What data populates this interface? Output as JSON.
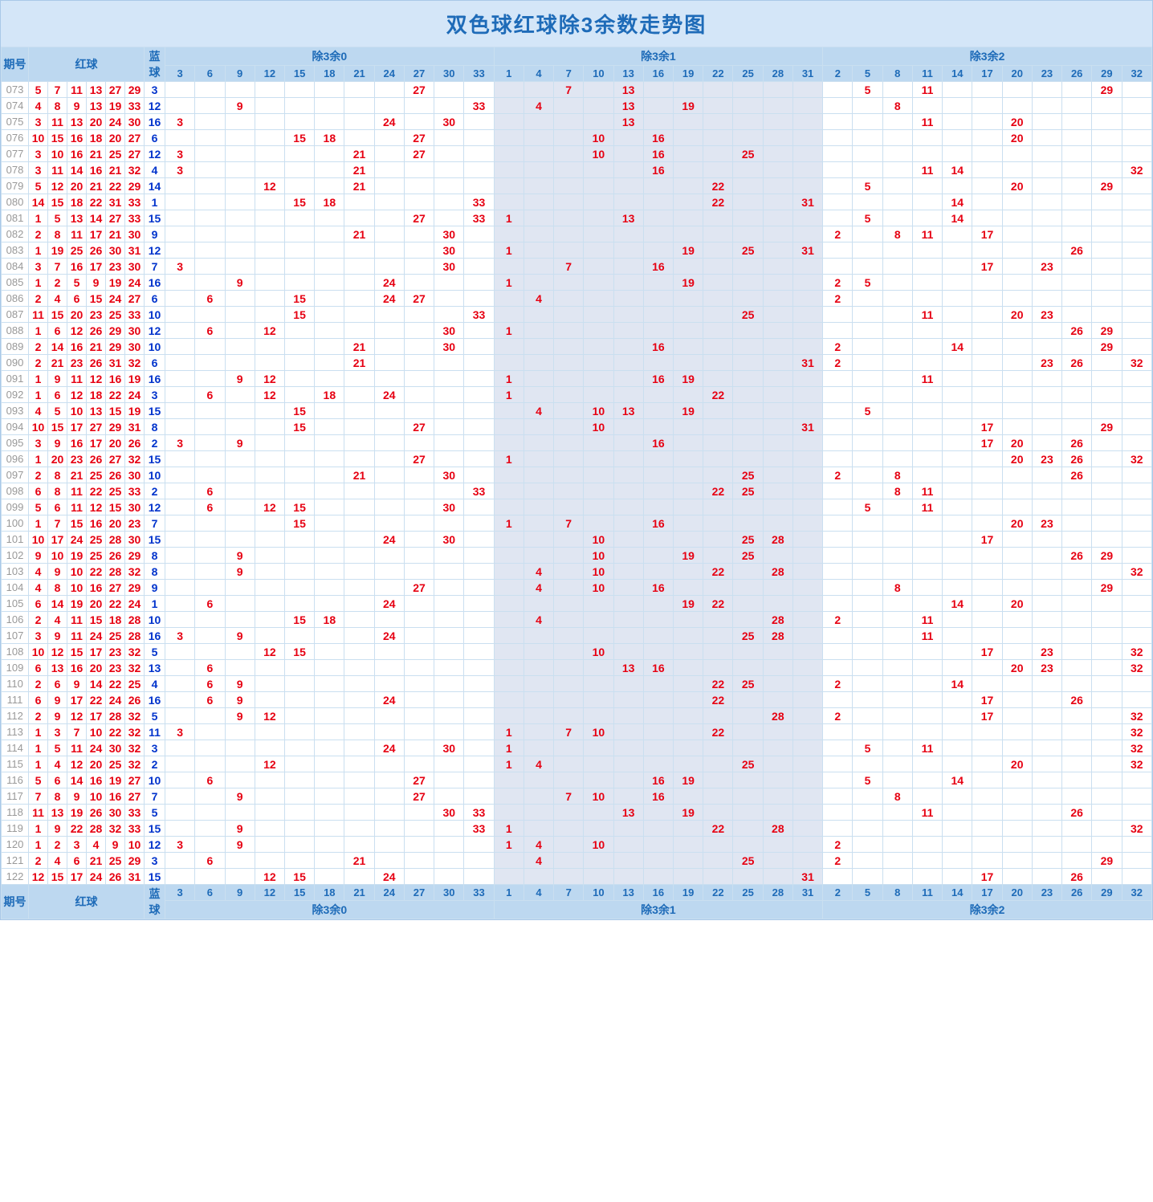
{
  "title": "双色球红球除3余数走势图",
  "headers": {
    "period": "期号",
    "redballs": "红球",
    "blueball": "蓝球",
    "groups": [
      "除3余0",
      "除3余1",
      "除3余2"
    ],
    "group_cols": [
      [
        "3",
        "6",
        "9",
        "12",
        "15",
        "18",
        "21",
        "24",
        "27",
        "30",
        "33"
      ],
      [
        "1",
        "4",
        "7",
        "10",
        "13",
        "16",
        "19",
        "22",
        "25",
        "28",
        "31"
      ],
      [
        "2",
        "5",
        "8",
        "11",
        "14",
        "17",
        "20",
        "23",
        "26",
        "29",
        "32"
      ]
    ]
  },
  "style": {
    "title_bg": "#d4e6f8",
    "title_color": "#1e6bb8",
    "title_fontsize": 26,
    "header_bg": "#bdd8f0",
    "header_color": "#1e6bb8",
    "border": "#cadff0",
    "g1_bg": "#e0e6f2",
    "red": "#e60012",
    "blue": "#0033cc",
    "period_color": "#999999",
    "cell_fontsize": 14
  },
  "rows": [
    {
      "p": "073",
      "red": [
        5,
        7,
        11,
        13,
        27,
        29
      ],
      "blue": 3,
      "r0": {
        "27": "27"
      },
      "r1": {
        "7": "7",
        "13": "13"
      },
      "r2": {
        "5": "5",
        "11": "11",
        "29": "29"
      }
    },
    {
      "p": "074",
      "red": [
        4,
        8,
        9,
        13,
        19,
        33
      ],
      "blue": 12,
      "r0": {
        "9": "9",
        "33": "33"
      },
      "r1": {
        "4": "4",
        "13": "13",
        "19": "19"
      },
      "r2": {
        "8": "8"
      }
    },
    {
      "p": "075",
      "red": [
        3,
        11,
        13,
        20,
        24,
        30
      ],
      "blue": 16,
      "r0": {
        "3": "3",
        "24": "24",
        "30": "30"
      },
      "r1": {
        "13": "13"
      },
      "r2": {
        "11": "11",
        "20": "20"
      }
    },
    {
      "p": "076",
      "red": [
        10,
        15,
        16,
        18,
        20,
        27
      ],
      "blue": 6,
      "r0": {
        "15": "15",
        "18": "18",
        "27": "27"
      },
      "r1": {
        "10": "10",
        "16": "16"
      },
      "r2": {
        "20": "20"
      }
    },
    {
      "p": "077",
      "red": [
        3,
        10,
        16,
        21,
        25,
        27
      ],
      "blue": 12,
      "r0": {
        "3": "3",
        "21": "21",
        "27": "27"
      },
      "r1": {
        "10": "10",
        "16": "16",
        "25": "25"
      },
      "r2": {}
    },
    {
      "p": "078",
      "red": [
        3,
        11,
        14,
        16,
        21,
        32
      ],
      "blue": 4,
      "r0": {
        "3": "3",
        "21": "21"
      },
      "r1": {
        "16": "16"
      },
      "r2": {
        "11": "11",
        "14": "14",
        "32": "32"
      }
    },
    {
      "p": "079",
      "red": [
        5,
        12,
        20,
        21,
        22,
        29
      ],
      "blue": 14,
      "r0": {
        "12": "12",
        "21": "21"
      },
      "r1": {
        "22": "22"
      },
      "r2": {
        "5": "5",
        "20": "20",
        "29": "29"
      }
    },
    {
      "p": "080",
      "red": [
        14,
        15,
        18,
        22,
        31,
        33
      ],
      "blue": 1,
      "r0": {
        "15": "15",
        "18": "18",
        "33": "33"
      },
      "r1": {
        "22": "22",
        "31": "31"
      },
      "r2": {
        "14": "14"
      }
    },
    {
      "p": "081",
      "red": [
        1,
        5,
        13,
        14,
        27,
        33
      ],
      "blue": 15,
      "r0": {
        "27": "27",
        "33": "33"
      },
      "r1": {
        "1": "1",
        "13": "13"
      },
      "r2": {
        "5": "5",
        "14": "14"
      }
    },
    {
      "p": "082",
      "red": [
        2,
        8,
        11,
        17,
        21,
        30
      ],
      "blue": 9,
      "r0": {
        "21": "21",
        "30": "30"
      },
      "r1": {},
      "r2": {
        "2": "2",
        "8": "8",
        "11": "11",
        "17": "17"
      }
    },
    {
      "p": "083",
      "red": [
        1,
        19,
        25,
        26,
        30,
        31
      ],
      "blue": 12,
      "r0": {
        "30": "30"
      },
      "r1": {
        "1": "1",
        "19": "19",
        "25": "25",
        "31": "31"
      },
      "r2": {
        "26": "26"
      }
    },
    {
      "p": "084",
      "red": [
        3,
        7,
        16,
        17,
        23,
        30
      ],
      "blue": 7,
      "r0": {
        "3": "3",
        "30": "30"
      },
      "r1": {
        "7": "7",
        "16": "16"
      },
      "r2": {
        "17": "17",
        "23": "23"
      }
    },
    {
      "p": "085",
      "red": [
        1,
        2,
        5,
        9,
        19,
        24
      ],
      "blue": 16,
      "r0": {
        "9": "9",
        "24": "24"
      },
      "r1": {
        "1": "1",
        "19": "19"
      },
      "r2": {
        "2": "2",
        "5": "5"
      }
    },
    {
      "p": "086",
      "red": [
        2,
        4,
        6,
        15,
        24,
        27
      ],
      "blue": 6,
      "r0": {
        "6": "6",
        "15": "15",
        "24": "24",
        "27": "27"
      },
      "r1": {
        "4": "4"
      },
      "r2": {
        "2": "2"
      }
    },
    {
      "p": "087",
      "red": [
        11,
        15,
        20,
        23,
        25,
        33
      ],
      "blue": 10,
      "r0": {
        "15": "15",
        "33": "33"
      },
      "r1": {
        "25": "25"
      },
      "r2": {
        "11": "11",
        "20": "20",
        "23": "23"
      }
    },
    {
      "p": "088",
      "red": [
        1,
        6,
        12,
        26,
        29,
        30
      ],
      "blue": 12,
      "r0": {
        "6": "6",
        "12": "12",
        "30": "30"
      },
      "r1": {
        "1": "1"
      },
      "r2": {
        "26": "26",
        "29": "29"
      }
    },
    {
      "p": "089",
      "red": [
        2,
        14,
        16,
        21,
        29,
        30
      ],
      "blue": 10,
      "r0": {
        "21": "21",
        "30": "30"
      },
      "r1": {
        "16": "16"
      },
      "r2": {
        "2": "2",
        "14": "14",
        "29": "29"
      }
    },
    {
      "p": "090",
      "red": [
        2,
        21,
        23,
        26,
        31,
        32
      ],
      "blue": 6,
      "r0": {
        "21": "21"
      },
      "r1": {
        "31": "31"
      },
      "r2": {
        "2": "2",
        "23": "23",
        "26": "26",
        "32": "32"
      }
    },
    {
      "p": "091",
      "red": [
        1,
        9,
        11,
        12,
        16,
        19
      ],
      "blue": 16,
      "r0": {
        "9": "9",
        "12": "12"
      },
      "r1": {
        "1": "1",
        "16": "16",
        "19": "19"
      },
      "r2": {
        "11": "11"
      }
    },
    {
      "p": "092",
      "red": [
        1,
        6,
        12,
        18,
        22,
        24
      ],
      "blue": 3,
      "r0": {
        "6": "6",
        "12": "12",
        "18": "18",
        "24": "24"
      },
      "r1": {
        "1": "1",
        "22": "22"
      },
      "r2": {}
    },
    {
      "p": "093",
      "red": [
        4,
        5,
        10,
        13,
        15,
        19
      ],
      "blue": 15,
      "r0": {
        "15": "15"
      },
      "r1": {
        "4": "4",
        "10": "10",
        "13": "13",
        "19": "19"
      },
      "r2": {
        "5": "5"
      }
    },
    {
      "p": "094",
      "red": [
        10,
        15,
        17,
        27,
        29,
        31
      ],
      "blue": 8,
      "r0": {
        "15": "15",
        "27": "27"
      },
      "r1": {
        "10": "10",
        "31": "31"
      },
      "r2": {
        "17": "17",
        "29": "29"
      }
    },
    {
      "p": "095",
      "red": [
        3,
        9,
        16,
        17,
        20,
        26
      ],
      "blue": 2,
      "r0": {
        "3": "3",
        "9": "9"
      },
      "r1": {
        "16": "16"
      },
      "r2": {
        "17": "17",
        "20": "20",
        "26": "26"
      }
    },
    {
      "p": "096",
      "red": [
        1,
        20,
        23,
        26,
        27,
        32
      ],
      "blue": 15,
      "r0": {
        "27": "27"
      },
      "r1": {
        "1": "1"
      },
      "r2": {
        "20": "20",
        "23": "23",
        "26": "26",
        "32": "32"
      }
    },
    {
      "p": "097",
      "red": [
        2,
        8,
        21,
        25,
        26,
        30
      ],
      "blue": 10,
      "r0": {
        "21": "21",
        "30": "30"
      },
      "r1": {
        "25": "25"
      },
      "r2": {
        "2": "2",
        "8": "8",
        "26": "26"
      }
    },
    {
      "p": "098",
      "red": [
        6,
        8,
        11,
        22,
        25,
        33
      ],
      "blue": 2,
      "r0": {
        "6": "6",
        "33": "33"
      },
      "r1": {
        "22": "22",
        "25": "25"
      },
      "r2": {
        "8": "8",
        "11": "11"
      }
    },
    {
      "p": "099",
      "red": [
        5,
        6,
        11,
        12,
        15,
        30
      ],
      "blue": 12,
      "r0": {
        "6": "6",
        "12": "12",
        "15": "15",
        "30": "30"
      },
      "r1": {},
      "r2": {
        "5": "5",
        "11": "11"
      }
    },
    {
      "p": "100",
      "red": [
        1,
        7,
        15,
        16,
        20,
        23
      ],
      "blue": 7,
      "r0": {
        "15": "15"
      },
      "r1": {
        "1": "1",
        "7": "7",
        "16": "16"
      },
      "r2": {
        "20": "20",
        "23": "23"
      }
    },
    {
      "p": "101",
      "red": [
        10,
        17,
        24,
        25,
        28,
        30
      ],
      "blue": 15,
      "r0": {
        "24": "24",
        "30": "30"
      },
      "r1": {
        "10": "10",
        "25": "25",
        "28": "28"
      },
      "r2": {
        "17": "17"
      }
    },
    {
      "p": "102",
      "red": [
        9,
        10,
        19,
        25,
        26,
        29
      ],
      "blue": 8,
      "r0": {
        "9": "9"
      },
      "r1": {
        "10": "10",
        "19": "19",
        "25": "25"
      },
      "r2": {
        "26": "26",
        "29": "29"
      }
    },
    {
      "p": "103",
      "red": [
        4,
        9,
        10,
        22,
        28,
        32
      ],
      "blue": 8,
      "r0": {
        "9": "9"
      },
      "r1": {
        "4": "4",
        "10": "10",
        "22": "22",
        "28": "28"
      },
      "r2": {
        "32": "32"
      }
    },
    {
      "p": "104",
      "red": [
        4,
        8,
        10,
        16,
        27,
        29
      ],
      "blue": 9,
      "r0": {
        "27": "27"
      },
      "r1": {
        "4": "4",
        "10": "10",
        "16": "16"
      },
      "r2": {
        "8": "8",
        "29": "29"
      }
    },
    {
      "p": "105",
      "red": [
        6,
        14,
        19,
        20,
        22,
        24
      ],
      "blue": 1,
      "r0": {
        "6": "6",
        "24": "24"
      },
      "r1": {
        "19": "19",
        "22": "22"
      },
      "r2": {
        "14": "14",
        "20": "20"
      }
    },
    {
      "p": "106",
      "red": [
        2,
        4,
        11,
        15,
        18,
        28
      ],
      "blue": 10,
      "r0": {
        "15": "15",
        "18": "18"
      },
      "r1": {
        "4": "4",
        "28": "28"
      },
      "r2": {
        "2": "2",
        "11": "11"
      }
    },
    {
      "p": "107",
      "red": [
        3,
        9,
        11,
        24,
        25,
        28
      ],
      "blue": 16,
      "r0": {
        "3": "3",
        "9": "9",
        "24": "24"
      },
      "r1": {
        "25": "25",
        "28": "28"
      },
      "r2": {
        "11": "11"
      }
    },
    {
      "p": "108",
      "red": [
        10,
        12,
        15,
        17,
        23,
        32
      ],
      "blue": 5,
      "r0": {
        "12": "12",
        "15": "15"
      },
      "r1": {
        "10": "10"
      },
      "r2": {
        "17": "17",
        "23": "23",
        "32": "32"
      }
    },
    {
      "p": "109",
      "red": [
        6,
        13,
        16,
        20,
        23,
        32
      ],
      "blue": 13,
      "r0": {
        "6": "6"
      },
      "r1": {
        "13": "13",
        "16": "16"
      },
      "r2": {
        "20": "20",
        "23": "23",
        "32": "32"
      }
    },
    {
      "p": "110",
      "red": [
        2,
        6,
        9,
        14,
        22,
        25
      ],
      "blue": 4,
      "r0": {
        "6": "6",
        "9": "9"
      },
      "r1": {
        "22": "22",
        "25": "25"
      },
      "r2": {
        "2": "2",
        "14": "14"
      }
    },
    {
      "p": "111",
      "red": [
        6,
        9,
        17,
        22,
        24,
        26
      ],
      "blue": 16,
      "r0": {
        "6": "6",
        "9": "9",
        "24": "24"
      },
      "r1": {
        "22": "22"
      },
      "r2": {
        "17": "17",
        "26": "26"
      }
    },
    {
      "p": "112",
      "red": [
        2,
        9,
        12,
        17,
        28,
        32
      ],
      "blue": 5,
      "r0": {
        "9": "9",
        "12": "12"
      },
      "r1": {
        "28": "28"
      },
      "r2": {
        "2": "2",
        "17": "17",
        "32": "32"
      }
    },
    {
      "p": "113",
      "red": [
        1,
        3,
        7,
        10,
        22,
        32
      ],
      "blue": 11,
      "r0": {
        "3": "3"
      },
      "r1": {
        "1": "1",
        "7": "7",
        "10": "10",
        "22": "22"
      },
      "r2": {
        "32": "32"
      }
    },
    {
      "p": "114",
      "red": [
        1,
        5,
        11,
        24,
        30,
        32
      ],
      "blue": 3,
      "r0": {
        "24": "24",
        "30": "30"
      },
      "r1": {
        "1": "1"
      },
      "r2": {
        "5": "5",
        "11": "11",
        "32": "32"
      }
    },
    {
      "p": "115",
      "red": [
        1,
        4,
        12,
        20,
        25,
        32
      ],
      "blue": 2,
      "r0": {
        "12": "12"
      },
      "r1": {
        "1": "1",
        "4": "4",
        "25": "25"
      },
      "r2": {
        "20": "20",
        "32": "32"
      }
    },
    {
      "p": "116",
      "red": [
        5,
        6,
        14,
        16,
        19,
        27
      ],
      "blue": 10,
      "r0": {
        "6": "6",
        "27": "27"
      },
      "r1": {
        "16": "16",
        "19": "19"
      },
      "r2": {
        "5": "5",
        "14": "14"
      }
    },
    {
      "p": "117",
      "red": [
        7,
        8,
        9,
        10,
        16,
        27
      ],
      "blue": 7,
      "r0": {
        "9": "9",
        "27": "27"
      },
      "r1": {
        "7": "7",
        "10": "10",
        "16": "16"
      },
      "r2": {
        "8": "8"
      }
    },
    {
      "p": "118",
      "red": [
        11,
        13,
        19,
        26,
        30,
        33
      ],
      "blue": 5,
      "r0": {
        "30": "30",
        "33": "33"
      },
      "r1": {
        "13": "13",
        "19": "19"
      },
      "r2": {
        "11": "11",
        "26": "26"
      }
    },
    {
      "p": "119",
      "red": [
        1,
        9,
        22,
        28,
        32,
        33
      ],
      "blue": 15,
      "r0": {
        "9": "9",
        "33": "33"
      },
      "r1": {
        "1": "1",
        "22": "22",
        "28": "28"
      },
      "r2": {
        "32": "32"
      }
    },
    {
      "p": "120",
      "red": [
        1,
        2,
        3,
        4,
        9,
        10
      ],
      "blue": 12,
      "r0": {
        "3": "3",
        "9": "9"
      },
      "r1": {
        "1": "1",
        "4": "4",
        "10": "10"
      },
      "r2": {
        "2": "2"
      }
    },
    {
      "p": "121",
      "red": [
        2,
        4,
        6,
        21,
        25,
        29
      ],
      "blue": 3,
      "r0": {
        "6": "6",
        "21": "21"
      },
      "r1": {
        "4": "4",
        "25": "25"
      },
      "r2": {
        "2": "2",
        "29": "29"
      }
    },
    {
      "p": "122",
      "red": [
        12,
        15,
        17,
        24,
        26,
        31
      ],
      "blue": 15,
      "r0": {
        "12": "12",
        "15": "15",
        "24": "24"
      },
      "r1": {
        "31": "31"
      },
      "r2": {
        "17": "17",
        "26": "26"
      }
    }
  ]
}
